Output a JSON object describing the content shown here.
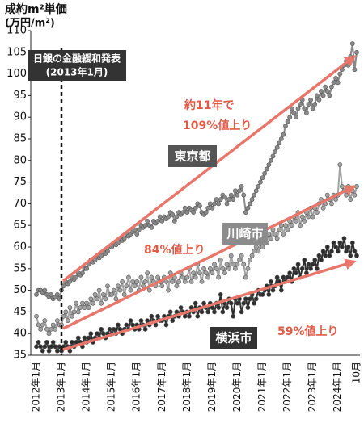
{
  "chart_data": {
    "type": "line",
    "title": "成約m²単価",
    "ylabel": "(万円/m²)",
    "annotations": [
      "日銀の金融緩和発表",
      "(2013年1月)",
      "約11年で",
      "109%値上り",
      "84%値上り",
      "59%値上り"
    ],
    "categories": [
      "2012年1月",
      null,
      null,
      null,
      null,
      null,
      null,
      null,
      null,
      null,
      null,
      null,
      "2013年1月",
      null,
      null,
      null,
      null,
      null,
      null,
      null,
      null,
      null,
      null,
      null,
      "2014年1月",
      null,
      null,
      null,
      null,
      null,
      null,
      null,
      null,
      null,
      null,
      null,
      "2015年1月",
      null,
      null,
      null,
      null,
      null,
      null,
      null,
      null,
      null,
      null,
      null,
      "2016年1月",
      null,
      null,
      null,
      null,
      null,
      null,
      null,
      null,
      null,
      null,
      null,
      "2017年1月",
      null,
      null,
      null,
      null,
      null,
      null,
      null,
      null,
      null,
      null,
      null,
      "2018年1月",
      null,
      null,
      null,
      null,
      null,
      null,
      null,
      null,
      null,
      null,
      null,
      "2019年1月",
      null,
      null,
      null,
      null,
      null,
      null,
      null,
      null,
      null,
      null,
      null,
      "2020年1月",
      null,
      null,
      null,
      null,
      null,
      null,
      null,
      null,
      null,
      null,
      null,
      "2021年1月",
      null,
      null,
      null,
      null,
      null,
      null,
      null,
      null,
      null,
      null,
      null,
      "2022年1月",
      null,
      null,
      null,
      null,
      null,
      null,
      null,
      null,
      null,
      null,
      null,
      "2023年1月",
      null,
      null,
      null,
      null,
      null,
      null,
      null,
      null,
      null,
      null,
      null,
      "2024年1月",
      null,
      null,
      null,
      null,
      null,
      null,
      null,
      null,
      "10月"
    ],
    "series": [
      {
        "name": "東京都",
        "color": "#8a8a8a",
        "values": [
          49,
          50,
          50,
          49.5,
          50,
          49,
          48.5,
          49,
          48,
          48.5,
          49,
          48,
          50,
          51,
          52,
          51.5,
          52,
          53,
          52.5,
          53,
          54,
          53.5,
          54,
          55,
          55,
          56,
          57,
          56.5,
          57,
          58,
          57.5,
          58,
          59,
          58.5,
          59,
          60,
          60,
          61,
          60.5,
          61,
          62,
          61.5,
          62,
          63,
          62.5,
          63,
          63.5,
          64,
          63,
          64,
          65,
          64.5,
          65,
          66,
          65,
          64.5,
          66,
          65.5,
          66,
          67,
          66,
          67,
          66.5,
          67,
          68,
          67.5,
          66,
          67,
          68,
          67.5,
          68,
          69,
          68,
          69,
          68.5,
          68,
          69,
          70,
          69.5,
          68,
          67.5,
          68,
          69,
          70,
          69,
          70,
          71,
          70,
          71,
          72,
          71.5,
          70,
          71,
          72,
          71,
          73,
          72,
          73,
          74,
          72,
          68,
          69,
          70,
          71,
          72,
          73,
          74,
          75,
          76,
          77,
          78,
          79,
          80,
          81,
          82,
          83,
          84,
          85,
          86,
          88,
          89,
          90,
          92,
          91,
          90,
          92,
          93,
          94,
          92,
          91,
          93,
          94,
          92,
          93,
          95,
          94,
          96,
          95,
          97,
          96,
          95,
          97,
          98,
          99,
          98,
          100,
          101,
          102,
          103,
          102,
          104,
          107,
          101,
          105
        ]
      },
      {
        "name": "川崎市",
        "color": "#a3a3a3",
        "values": [
          44,
          42,
          41,
          42,
          43,
          41,
          40,
          41,
          42,
          41,
          43,
          42,
          42,
          44,
          45,
          43,
          46,
          44,
          45,
          47,
          45,
          46,
          47,
          46,
          47,
          46,
          48,
          47,
          49,
          48,
          50,
          47,
          49,
          48,
          51,
          49,
          49,
          50,
          48,
          51,
          50,
          52,
          49,
          51,
          53,
          50,
          52,
          51,
          52,
          50,
          53,
          51,
          52,
          54,
          50,
          53,
          52,
          51,
          53,
          52,
          51,
          53,
          52,
          50,
          54,
          52,
          53,
          51,
          52,
          54,
          53,
          52,
          53,
          55,
          52,
          54,
          53,
          56,
          54,
          52,
          55,
          54,
          53,
          55,
          54,
          56,
          55,
          53,
          57,
          55,
          54,
          56,
          55,
          58,
          56,
          55,
          56,
          57,
          58,
          56,
          53,
          55,
          57,
          58,
          59,
          60,
          59,
          61,
          60,
          62,
          61,
          63,
          62,
          64,
          63,
          62,
          64,
          65,
          63,
          65,
          64,
          66,
          65,
          67,
          66,
          68,
          65,
          67,
          66,
          68,
          67,
          69,
          67,
          69,
          68,
          70,
          71,
          69,
          70,
          72,
          71,
          70,
          72,
          71,
          72,
          79,
          74,
          73,
          72,
          74,
          71,
          73,
          72,
          74
        ]
      },
      {
        "name": "横浜市",
        "color": "#2e2e2e",
        "values": [
          37,
          38,
          37,
          36,
          37,
          38,
          36,
          37,
          38,
          37,
          36,
          37,
          36,
          37,
          38,
          37,
          36,
          38,
          37,
          38,
          39,
          38,
          37,
          39,
          38,
          39,
          40,
          38,
          39,
          40,
          39,
          41,
          40,
          39,
          40,
          41,
          40,
          41,
          40,
          42,
          41,
          40,
          41,
          42,
          41,
          43,
          42,
          41,
          42,
          41,
          43,
          42,
          41,
          43,
          42,
          44,
          43,
          42,
          44,
          43,
          43,
          44,
          42,
          44,
          45,
          43,
          44,
          45,
          44,
          46,
          45,
          44,
          45,
          44,
          46,
          45,
          47,
          44,
          46,
          45,
          47,
          46,
          45,
          47,
          46,
          45,
          47,
          46,
          49,
          45,
          47,
          46,
          48,
          47,
          44,
          48,
          47,
          48,
          45,
          47,
          48,
          46,
          48,
          49,
          47,
          48,
          50,
          49,
          49,
          50,
          51,
          49,
          52,
          50,
          51,
          53,
          52,
          50,
          53,
          52,
          53,
          54,
          52,
          55,
          54,
          56,
          53,
          55,
          57,
          54,
          56,
          55,
          56,
          57,
          55,
          58,
          57,
          59,
          58,
          60,
          58,
          59,
          61,
          60,
          59,
          61,
          60,
          62,
          59,
          60,
          58,
          61,
          59,
          58
        ]
      }
    ],
    "ylim": [
      35,
      110
    ],
    "yticks": [
      35,
      40,
      45,
      50,
      55,
      60,
      65,
      70,
      75,
      80,
      85,
      90,
      95,
      100,
      105,
      110
    ],
    "grid": false
  }
}
